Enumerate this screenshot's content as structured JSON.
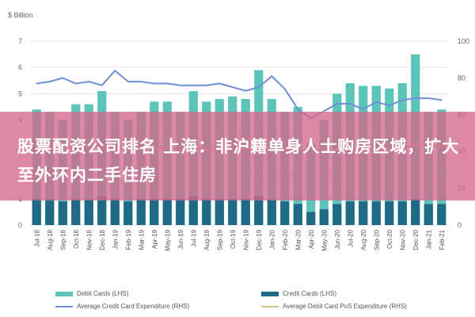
{
  "chart_data": {
    "type": "bar",
    "ylabel": "$ Billion",
    "ylim": [
      0,
      7
    ],
    "y2lim": [
      0,
      100
    ],
    "categories": [
      "Jul-18",
      "Aug-18",
      "Sep-18",
      "Oct-18",
      "Nov-18",
      "Dec-18",
      "Jan-19",
      "Feb-19",
      "Mar-19",
      "Apr-19",
      "May-19",
      "Jun-19",
      "Jul-19",
      "Aug-19",
      "Sep-19",
      "Oct-19",
      "Nov-19",
      "Dec-19",
      "Jan-20",
      "Feb-20",
      "Mar-20",
      "Apr-20",
      "May-20",
      "Jun-20",
      "Jul-20",
      "Aug-20",
      "Sep-20",
      "Oct-20",
      "Nov-20",
      "Dec-20",
      "Jan-21",
      "Feb-21"
    ],
    "yticks": [
      "0",
      "1",
      "2",
      "3",
      "4",
      "5",
      "6",
      "7"
    ],
    "y2ticks": [
      "0",
      "20",
      "40",
      "60",
      "80",
      "100"
    ],
    "series": [
      {
        "name": "Debit Cards (LHS)",
        "type": "bar",
        "color": "#5cc4b8",
        "values": [
          4.4,
          4.3,
          4.0,
          4.6,
          4.6,
          5.1,
          4.3,
          4.0,
          4.3,
          4.7,
          4.7,
          4.3,
          5.1,
          4.7,
          4.8,
          4.9,
          4.8,
          5.9,
          4.8,
          4.3,
          4.5,
          3.1,
          4.0,
          5.0,
          5.4,
          5.3,
          5.3,
          5.2,
          5.4,
          6.5,
          4.3,
          4.4
        ]
      },
      {
        "name": "Credit Cards (LHS)",
        "type": "bar",
        "color": "#1f6b86",
        "values": [
          1.0,
          1.0,
          0.9,
          1.0,
          1.0,
          1.1,
          1.0,
          0.9,
          1.0,
          1.0,
          1.0,
          1.0,
          1.1,
          1.0,
          1.0,
          1.0,
          1.0,
          1.1,
          1.0,
          0.9,
          0.8,
          0.5,
          0.6,
          0.8,
          0.9,
          0.9,
          0.9,
          0.9,
          0.9,
          1.0,
          0.8,
          0.8
        ]
      },
      {
        "name": "Average Credit Card Expenditure (RHS)",
        "type": "line",
        "color": "#6f8fd6",
        "values": [
          77,
          78,
          80,
          77,
          78,
          76,
          84,
          78,
          78,
          77,
          77,
          76,
          76,
          76,
          77,
          75,
          73,
          75,
          81,
          74,
          63,
          58,
          62,
          66,
          66,
          63,
          67,
          65,
          68,
          69,
          69,
          68
        ]
      },
      {
        "name": "Average Debit Card PoS Expenditure (RHS)",
        "type": "line",
        "color": "#d4c28a",
        "values": [
          42,
          43,
          42,
          42,
          43,
          43,
          41,
          42,
          42,
          42,
          42,
          41,
          42,
          41,
          41,
          41,
          41,
          41,
          41,
          41,
          41,
          41,
          40,
          41,
          41,
          41,
          41,
          41,
          42,
          44,
          44,
          43
        ]
      }
    ]
  },
  "overlay": {
    "text": "股票配资公司排名 上海：非沪籍单身人士购房区域，扩大至外环内二手住房"
  },
  "legend": {
    "debit": "Debit Cards (LHS)",
    "credit": "Credit Cards (LHS)",
    "avg_credit": "Average Credit Card Expenditure (RHS)",
    "avg_debit": "Average Debit Card PoS Expenditure (RHS)"
  }
}
